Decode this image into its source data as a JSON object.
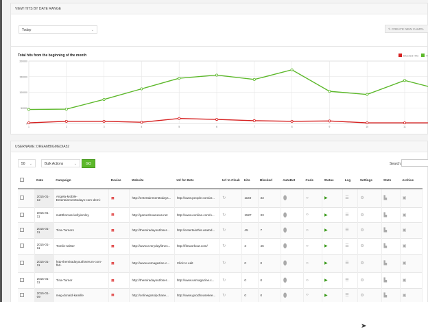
{
  "range_panel": {
    "title": "VIEW HITS BY DATE RANGE",
    "range_select": "Today",
    "create_button": "CREATE NEW CAMPA"
  },
  "chart_data": {
    "type": "line",
    "title": "Total hits from the beginning of the month",
    "x": [
      1,
      2,
      3,
      4,
      5,
      6,
      7,
      8,
      9,
      10,
      11,
      12
    ],
    "xticks": [
      "1",
      "2",
      "3",
      "4",
      "5",
      "6",
      "7",
      "8",
      "9",
      "10",
      "11"
    ],
    "yticks": [
      "0",
      "50000",
      "100000",
      "150000",
      "200000"
    ],
    "ylim": [
      0,
      200000
    ],
    "grid": true,
    "legend": "top-right",
    "series": [
      {
        "name": "Blocked Hits",
        "color": "#d62020",
        "values": [
          2000,
          7000,
          7000,
          4000,
          16000,
          13000,
          9000,
          7000,
          8000,
          2000,
          2000,
          2000
        ]
      },
      {
        "name": "Vis",
        "color": "#5cb82a",
        "values": [
          45000,
          46000,
          77000,
          111000,
          145000,
          155000,
          141000,
          172000,
          103000,
          93000,
          138000,
          107000
        ]
      }
    ]
  },
  "user_panel": {
    "title": "USERNAME: DREAMBIGMEDIA52",
    "page_size": "50",
    "bulk_actions": "Bulk Actions",
    "go": "GO",
    "search_label": "Search:"
  },
  "table": {
    "headers": [
      "Date",
      "Campaign",
      "Device",
      "Website",
      "Url for Bots",
      "Url to Cloak",
      "Hits",
      "Blocked",
      "AutoBot",
      "Code",
      "Status",
      "Log",
      "Settings",
      "Stats",
      "Archive"
    ],
    "rows": [
      {
        "date": "2015-01-12",
        "campaign": "Angela-Mobile-Entertainmenttodays-com-demi-",
        "website": "http://entertainmenttodays...",
        "bots": "http://www.people.com/ar...",
        "hits": "1160",
        "blocked": "33"
      },
      {
        "date": "2015-01-11",
        "campaign": "mattthomas-kellylemley",
        "website": "http://gameshownews.net",
        "bots": "http://www.eonline.com/n...",
        "hits": "1527",
        "blocked": "33"
      },
      {
        "date": "2015-01-11",
        "campaign": "Tina-Turners",
        "website": "http://themiradayoutfoser...",
        "bots": "http://entertainthis.usatod...",
        "hits": "45",
        "blocked": "7"
      },
      {
        "date": "2015-01-11",
        "campaign": "Tomlin-twitter",
        "website": "http://www.everydayfitnes...",
        "bots": "http://fitnworkout.com/",
        "hits": "3",
        "blocked": "46"
      },
      {
        "date": "2015-01-11",
        "campaign": "http-themiradayoutfoserum-com-fb2-",
        "website": "http://www.usmagazine.c...",
        "bots": "Click to edit",
        "hits": "0",
        "blocked": "0"
      },
      {
        "date": "2015-01-11",
        "campaign": "Tina-Turner",
        "website": "http://themiradayoutfoser...",
        "bots": "http://www.usmagazine.c...",
        "hits": "0",
        "blocked": "0"
      },
      {
        "date": "2015-01-09",
        "campaign": "meg-donald-kamille",
        "website": "http://onlinegossipchane...",
        "bots": "http://www.goodhousekee...",
        "hits": "0",
        "blocked": "0"
      }
    ]
  }
}
